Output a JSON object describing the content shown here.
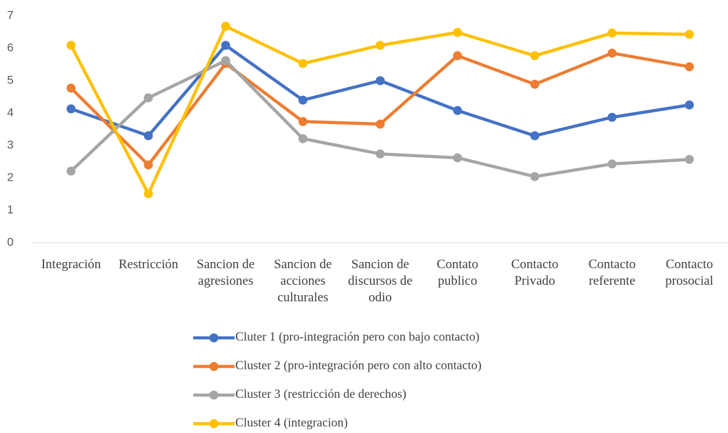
{
  "chart_data": {
    "type": "line",
    "categories": [
      "Integración",
      "Restricción",
      "Sancion de agresiones",
      "Sancion de acciones culturales",
      "Sancion de discursos de odio",
      "Contato publico",
      "Contacto Privado",
      "Contacto referente",
      "Contacto prosocial"
    ],
    "series": [
      {
        "name": "Cluter 1 (pro-integración pero con bajo contacto)",
        "color": "#4472c4",
        "values": [
          4.13,
          3.3,
          6.09,
          4.4,
          5.0,
          4.08,
          3.3,
          3.87,
          4.25
        ]
      },
      {
        "name": "Cluster 2 (pro-integración pero con alto contacto)",
        "color": "#ed7d31",
        "values": [
          4.77,
          2.4,
          5.53,
          3.74,
          3.66,
          5.77,
          4.89,
          5.85,
          5.43
        ]
      },
      {
        "name": "Cluster 3 (restricción de derechos)",
        "color": "#a5a5a5",
        "values": [
          2.21,
          4.47,
          5.62,
          3.21,
          2.74,
          2.62,
          2.04,
          2.43,
          2.57
        ]
      },
      {
        "name": "Cluster 4 (integracion)",
        "color": "#ffc000",
        "values": [
          6.09,
          1.51,
          6.68,
          5.53,
          6.09,
          6.49,
          5.77,
          6.47,
          6.43
        ]
      }
    ],
    "ylim": [
      0,
      7
    ],
    "yticks": [
      0,
      1,
      2,
      3,
      4,
      5,
      6,
      7
    ],
    "grid": false,
    "legend": "bottom"
  }
}
